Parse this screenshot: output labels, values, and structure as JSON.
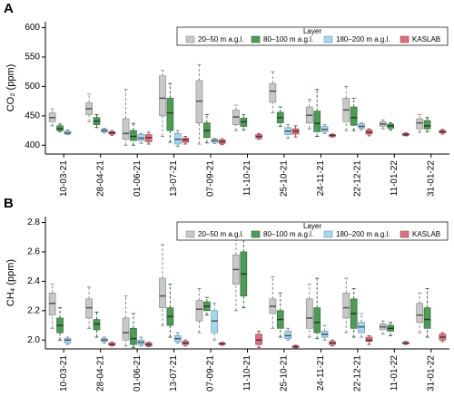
{
  "chart_data": [
    {
      "type": "box",
      "title": "A",
      "ylabel": "CO₂ (ppm)",
      "legend_title": "Layer",
      "legend": "top-right",
      "categories": [
        "10-03-21",
        "28-04-21",
        "01-06-21",
        "13-07-21",
        "07-09-21",
        "11-10-21",
        "25-10-21",
        "24-11-21",
        "22-12-21",
        "11-01-22",
        "31-01-22"
      ],
      "ylim": [
        385,
        610
      ],
      "yticks": [
        400,
        450,
        500,
        550,
        600
      ],
      "series": [
        {
          "name": "20–50 m a.g.l.",
          "color": "#c8c8c8",
          "values": [
            [
              433,
              440,
              447,
              455,
              462
            ],
            [
              440,
              452,
              462,
              472,
              487
            ],
            [
              400,
              410,
              420,
              445,
              495
            ],
            [
              415,
              450,
              480,
              518,
              527
            ],
            [
              402,
              438,
              475,
              510,
              537
            ],
            [
              425,
              435,
              448,
              460,
              468
            ],
            [
              455,
              473,
              492,
              505,
              525
            ],
            [
              428,
              438,
              451,
              465,
              478
            ],
            [
              425,
              440,
              460,
              480,
              500
            ],
            [
              428,
              432,
              436,
              440,
              443
            ],
            [
              422,
              428,
              438,
              445,
              452
            ]
          ]
        },
        {
          "name": "80–100 m a.g.l.",
          "color": "#4e9a57",
          "values": [
            [
              423,
              425,
              428,
              433,
              436
            ],
            [
              430,
              435,
              441,
              447,
              452
            ],
            [
              400,
              408,
              415,
              425,
              437
            ],
            [
              405,
              425,
              455,
              480,
              505
            ],
            [
              404,
              413,
              425,
              438,
              452
            ],
            [
              426,
              432,
              440,
              446,
              452
            ],
            [
              432,
              438,
              447,
              456,
              465
            ],
            [
              415,
              423,
              437,
              458,
              495
            ],
            [
              425,
              434,
              447,
              465,
              480
            ],
            [
              426,
              429,
              433,
              436,
              438
            ],
            [
              423,
              428,
              433,
              442,
              447
            ]
          ]
        },
        {
          "name": "180–200 m a.g.l.",
          "color": "#a6d6f0",
          "values": [
            [
              418,
              419,
              421,
              424,
              426
            ],
            [
              421,
              423,
              425,
              427,
              429
            ],
            [
              403,
              408,
              412,
              418,
              420
            ],
            [
              398,
              402,
              410,
              420,
              425
            ],
            [
              403,
              405,
              408,
              410,
              412
            ],
            null,
            [
              412,
              418,
              424,
              430,
              435
            ],
            [
              420,
              423,
              427,
              432,
              435
            ],
            [
              426,
              429,
              432,
              436,
              438
            ],
            null,
            null
          ]
        },
        {
          "name": "KASLAB",
          "color": "#d9707f",
          "values": [
            null,
            [
              417,
              419,
              421,
              423,
              425
            ],
            [
              402,
              406,
              413,
              418,
              422
            ],
            [
              402,
              405,
              409,
              412,
              415
            ],
            [
              401,
              403,
              406,
              409,
              411
            ],
            [
              410,
              412,
              415,
              418,
              420
            ],
            [
              414,
              419,
              424,
              428,
              433
            ],
            [
              414,
              415,
              417,
              418,
              419
            ],
            [
              416,
              419,
              422,
              426,
              428
            ],
            [
              416,
              417,
              418,
              420,
              421
            ],
            [
              419,
              421,
              423,
              425,
              427
            ]
          ]
        }
      ]
    },
    {
      "type": "box",
      "title": "B",
      "ylabel": "CH₄ (ppm)",
      "legend_title": "Layer",
      "legend": "top-right",
      "categories": [
        "10-03-21",
        "28-04-21",
        "01-06-21",
        "13-07-21",
        "07-09-21",
        "11-10-21",
        "25-10-21",
        "24-11-21",
        "22-12-21",
        "11-01-22",
        "31-01-22"
      ],
      "ylim": [
        1.94,
        2.84
      ],
      "yticks": [
        {
          "value": 2,
          "label": "2.0"
        },
        2.2,
        2.4,
        2.6,
        2.8
      ],
      "series": [
        {
          "name": "20–50 m a.g.l.",
          "color": "#c8c8c8",
          "values": [
            [
              2.08,
              2.17,
              2.25,
              2.32,
              2.38
            ],
            [
              2.08,
              2.15,
              2.22,
              2.28,
              2.36
            ],
            [
              1.96,
              2.0,
              2.05,
              2.15,
              2.3
            ],
            [
              2.1,
              2.22,
              2.3,
              2.42,
              2.65
            ],
            [
              2.05,
              2.13,
              2.21,
              2.27,
              2.35
            ],
            [
              2.2,
              2.38,
              2.48,
              2.58,
              2.73
            ],
            [
              2.08,
              2.18,
              2.23,
              2.28,
              2.43
            ],
            [
              2.02,
              2.08,
              2.15,
              2.28,
              2.38
            ],
            [
              2.05,
              2.15,
              2.22,
              2.32,
              2.42
            ],
            [
              2.04,
              2.07,
              2.09,
              2.11,
              2.13
            ],
            [
              2.05,
              2.12,
              2.17,
              2.25,
              2.32
            ]
          ]
        },
        {
          "name": "80–100 m a.g.l.",
          "color": "#4e9a57",
          "values": [
            [
              2.0,
              2.05,
              2.1,
              2.15,
              2.22
            ],
            [
              2.02,
              2.07,
              2.11,
              2.14,
              2.19
            ],
            [
              1.95,
              1.97,
              2.01,
              2.08,
              2.18
            ],
            [
              2.02,
              2.1,
              2.16,
              2.22,
              2.38
            ],
            [
              2.17,
              2.2,
              2.23,
              2.26,
              2.29
            ],
            [
              2.22,
              2.3,
              2.45,
              2.6,
              2.72
            ],
            [
              2.02,
              2.08,
              2.14,
              2.2,
              2.32
            ],
            [
              2.01,
              2.05,
              2.12,
              2.22,
              2.42
            ],
            [
              2.02,
              2.08,
              2.18,
              2.28,
              2.35
            ],
            [
              2.03,
              2.06,
              2.08,
              2.1,
              2.12
            ],
            [
              2.02,
              2.08,
              2.14,
              2.22,
              2.35
            ]
          ]
        },
        {
          "name": "180–200 m a.g.l.",
          "color": "#a6d6f0",
          "values": [
            [
              1.97,
              1.98,
              2.0,
              2.01,
              2.02
            ],
            [
              1.98,
              1.99,
              2.0,
              2.01,
              2.02
            ],
            [
              1.96,
              1.97,
              1.985,
              2.0,
              2.02
            ],
            [
              1.98,
              1.99,
              2.01,
              2.03,
              2.05
            ],
            [
              2.0,
              2.05,
              2.13,
              2.2,
              2.25
            ],
            null,
            [
              2.0,
              2.01,
              2.03,
              2.06,
              2.08
            ],
            [
              2.0,
              2.02,
              2.04,
              2.06,
              2.1
            ],
            [
              2.02,
              2.05,
              2.09,
              2.12,
              2.18
            ],
            null,
            null
          ]
        },
        {
          "name": "KASLAB",
          "color": "#d9707f",
          "values": [
            null,
            [
              1.96,
              1.965,
              1.97,
              1.98,
              1.985
            ],
            [
              1.955,
              1.96,
              1.97,
              1.98,
              1.985
            ],
            [
              1.96,
              1.97,
              1.98,
              1.99,
              2.0
            ],
            [
              1.965,
              1.97,
              1.975,
              1.98,
              1.985
            ],
            [
              1.95,
              1.97,
              2.0,
              2.04,
              2.06
            ],
            [
              1.945,
              1.95,
              1.955,
              1.96,
              1.965
            ],
            [
              1.96,
              1.97,
              1.98,
              1.99,
              2.0
            ],
            [
              1.97,
              1.99,
              2.0,
              2.02,
              2.03
            ],
            [
              1.97,
              1.975,
              1.98,
              1.985,
              1.99
            ],
            [
              1.99,
              2.0,
              2.02,
              2.04,
              2.05
            ]
          ]
        }
      ]
    }
  ]
}
